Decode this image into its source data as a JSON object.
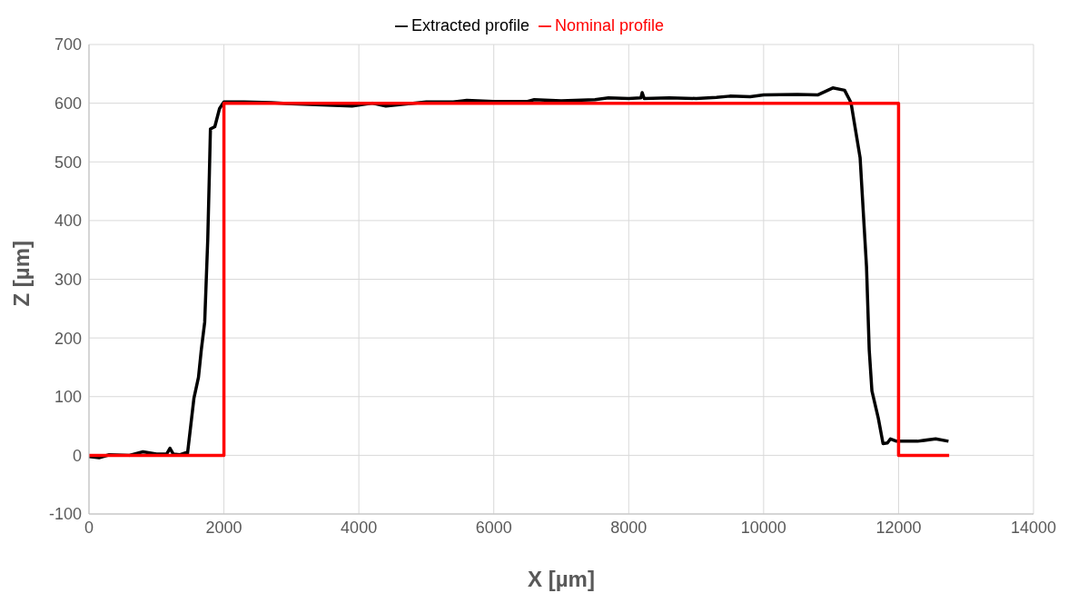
{
  "chart_data": {
    "type": "line",
    "xlabel": "X [µm]",
    "ylabel": "Z [µm]",
    "xlim": [
      0,
      14000
    ],
    "xticks": [
      0,
      2000,
      4000,
      6000,
      8000,
      10000,
      12000,
      14000
    ],
    "ylim": [
      -100,
      700
    ],
    "yticks": [
      -100,
      0,
      100,
      200,
      300,
      400,
      500,
      600,
      700
    ],
    "grid": true,
    "legend": "top",
    "marker": "none",
    "line_style": "solid",
    "series": [
      {
        "name": "Extracted profile",
        "color": "#000000",
        "x": [
          0,
          150,
          300,
          600,
          800,
          1000,
          1150,
          1200,
          1250,
          1350,
          1450,
          1460,
          1555,
          1623,
          1665,
          1715,
          1760,
          1785,
          1800,
          1865,
          1935,
          2000,
          2300,
          2700,
          3000,
          3900,
          4200,
          4400,
          5000,
          5400,
          5600,
          6000,
          6500,
          6600,
          7000,
          7500,
          7700,
          8000,
          8180,
          8200,
          8230,
          8600,
          9000,
          9300,
          9500,
          9800,
          10000,
          10500,
          10800,
          11025,
          11200,
          11295,
          11430,
          11525,
          11565,
          11605,
          11700,
          11770,
          11835,
          11880,
          11970,
          12280,
          12550,
          12740
        ],
        "values": [
          -2,
          -4,
          1,
          0,
          6,
          2,
          2,
          12,
          2,
          1,
          5,
          3,
          97,
          133,
          180,
          227,
          367,
          483,
          556,
          560,
          591,
          602,
          602,
          601,
          599,
          595,
          600,
          595,
          602,
          602,
          605,
          603,
          603,
          606,
          604,
          606,
          609,
          608,
          609,
          618,
          608,
          609,
          608,
          610,
          612,
          611,
          614,
          615,
          614,
          626,
          622,
          601,
          507,
          321,
          180,
          110,
          63,
          20,
          21,
          28,
          24,
          24,
          28,
          24
        ]
      },
      {
        "name": "Nominal profile",
        "color": "#ff0000",
        "x": [
          0,
          2000,
          2000,
          12000,
          12000,
          12750
        ],
        "values": [
          0,
          0,
          600,
          600,
          0,
          0
        ]
      }
    ]
  }
}
